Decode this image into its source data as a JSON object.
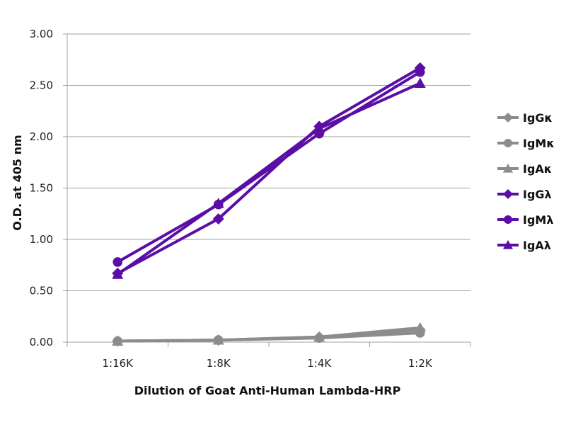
{
  "chart_data": {
    "type": "line",
    "title": "",
    "xlabel": "Dilution of Goat Anti-Human Lambda-HRP",
    "ylabel": "O.D. at 405 nm",
    "categories": [
      "1:16K",
      "1:8K",
      "1:4K",
      "1:2K"
    ],
    "ylim": [
      0,
      3
    ],
    "yticks": [
      "0.00",
      "0.50",
      "1.00",
      "1.50",
      "2.00",
      "2.50",
      "3.00"
    ],
    "ytick_values": [
      0,
      0.5,
      1,
      1.5,
      2,
      2.5,
      3
    ],
    "grid": "horizontal",
    "legend_position": "right",
    "series": [
      {
        "name": "IgGκ",
        "marker": "diamond",
        "color": "#8c8c8c",
        "values": [
          0.01,
          0.02,
          0.05,
          0.12
        ]
      },
      {
        "name": "IgMκ",
        "marker": "circle",
        "color": "#8c8c8c",
        "values": [
          0.01,
          0.02,
          0.04,
          0.09
        ]
      },
      {
        "name": "IgAκ",
        "marker": "triangle",
        "color": "#8c8c8c",
        "values": [
          0.01,
          0.02,
          0.05,
          0.14
        ]
      },
      {
        "name": "IgGλ",
        "marker": "diamond",
        "color": "#5b0ea6",
        "values": [
          0.67,
          1.2,
          2.1,
          2.67
        ]
      },
      {
        "name": "IgMλ",
        "marker": "circle",
        "color": "#5b0ea6",
        "values": [
          0.78,
          1.34,
          2.03,
          2.63
        ]
      },
      {
        "name": "IgAλ",
        "marker": "triangle",
        "color": "#5b0ea6",
        "values": [
          0.66,
          1.35,
          2.08,
          2.52
        ]
      }
    ]
  }
}
